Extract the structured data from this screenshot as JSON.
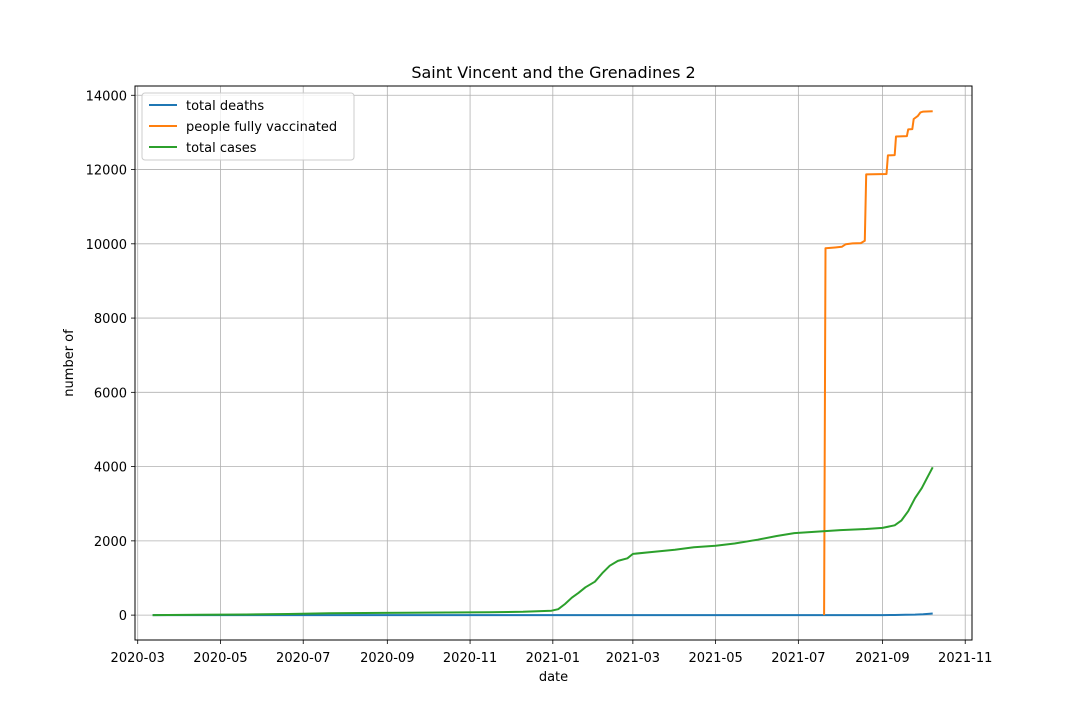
{
  "chart_data": {
    "type": "line",
    "title": "Saint Vincent and the Grenadines 2",
    "xlabel": "date",
    "ylabel": "number of",
    "xlim": [
      "2020-02-28",
      "2021-11-06"
    ],
    "ylim": [
      -670,
      14250
    ],
    "grid": true,
    "legend_position": "top-left",
    "x_ticks": [
      "2020-03",
      "2020-05",
      "2020-07",
      "2020-09",
      "2020-11",
      "2021-01",
      "2021-03",
      "2021-05",
      "2021-07",
      "2021-09",
      "2021-11"
    ],
    "y_ticks": [
      0,
      2000,
      4000,
      6000,
      8000,
      10000,
      12000,
      14000
    ],
    "series": [
      {
        "name": "total deaths",
        "color": "#1f77b4",
        "points": [
          [
            "2020-03-12",
            0
          ],
          [
            "2021-08-15",
            0
          ],
          [
            "2021-09-01",
            1
          ],
          [
            "2021-09-10",
            3
          ],
          [
            "2021-09-18",
            8
          ],
          [
            "2021-09-25",
            15
          ],
          [
            "2021-10-01",
            25
          ],
          [
            "2021-10-06",
            38
          ],
          [
            "2021-10-08",
            45
          ]
        ]
      },
      {
        "name": "people fully vaccinated",
        "color": "#ff7f0e",
        "points": [
          [
            "2021-07-20",
            0
          ],
          [
            "2021-07-21",
            9880
          ],
          [
            "2021-07-28",
            9900
          ],
          [
            "2021-08-02",
            9920
          ],
          [
            "2021-08-05",
            9990
          ],
          [
            "2021-08-10",
            10010
          ],
          [
            "2021-08-16",
            10020
          ],
          [
            "2021-08-19",
            10080
          ],
          [
            "2021-08-20",
            11870
          ],
          [
            "2021-09-04",
            11880
          ],
          [
            "2021-09-05",
            12380
          ],
          [
            "2021-09-10",
            12390
          ],
          [
            "2021-09-11",
            12890
          ],
          [
            "2021-09-19",
            12900
          ],
          [
            "2021-09-20",
            13080
          ],
          [
            "2021-09-23",
            13090
          ],
          [
            "2021-09-24",
            13360
          ],
          [
            "2021-09-27",
            13440
          ],
          [
            "2021-09-29",
            13540
          ],
          [
            "2021-10-01",
            13560
          ],
          [
            "2021-10-08",
            13570
          ]
        ]
      },
      {
        "name": "total cases",
        "color": "#2ca02c",
        "points": [
          [
            "2020-03-12",
            1
          ],
          [
            "2020-04-15",
            12
          ],
          [
            "2020-05-20",
            18
          ],
          [
            "2020-06-20",
            29
          ],
          [
            "2020-07-20",
            52
          ],
          [
            "2020-08-15",
            57
          ],
          [
            "2020-09-15",
            64
          ],
          [
            "2020-10-15",
            70
          ],
          [
            "2020-11-15",
            80
          ],
          [
            "2020-12-10",
            90
          ],
          [
            "2020-12-31",
            120
          ],
          [
            "2021-01-05",
            160
          ],
          [
            "2021-01-10",
            300
          ],
          [
            "2021-01-15",
            470
          ],
          [
            "2021-01-20",
            600
          ],
          [
            "2021-01-25",
            750
          ],
          [
            "2021-02-01",
            900
          ],
          [
            "2021-02-07",
            1150
          ],
          [
            "2021-02-12",
            1330
          ],
          [
            "2021-02-18",
            1460
          ],
          [
            "2021-02-25",
            1530
          ],
          [
            "2021-03-01",
            1650
          ],
          [
            "2021-03-15",
            1700
          ],
          [
            "2021-04-01",
            1760
          ],
          [
            "2021-04-15",
            1830
          ],
          [
            "2021-05-01",
            1870
          ],
          [
            "2021-05-15",
            1930
          ],
          [
            "2021-06-01",
            2030
          ],
          [
            "2021-06-15",
            2130
          ],
          [
            "2021-06-28",
            2210
          ],
          [
            "2021-07-15",
            2250
          ],
          [
            "2021-08-01",
            2290
          ],
          [
            "2021-08-20",
            2320
          ],
          [
            "2021-09-01",
            2350
          ],
          [
            "2021-09-10",
            2420
          ],
          [
            "2021-09-15",
            2550
          ],
          [
            "2021-09-20",
            2800
          ],
          [
            "2021-09-25",
            3150
          ],
          [
            "2021-09-30",
            3420
          ],
          [
            "2021-10-04",
            3700
          ],
          [
            "2021-10-08",
            3980
          ]
        ]
      }
    ]
  }
}
